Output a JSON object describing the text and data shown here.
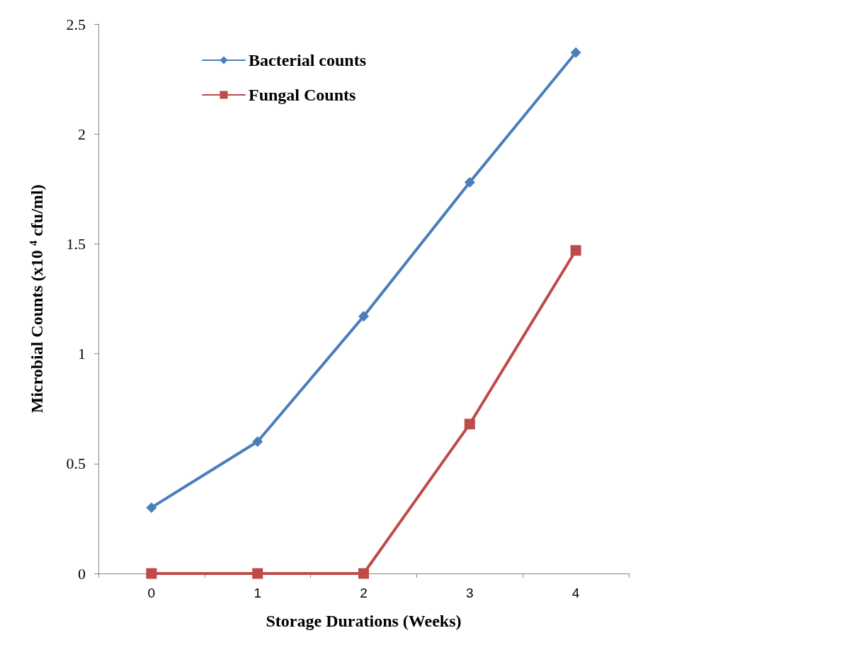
{
  "chart_data": {
    "type": "line",
    "xlabel": "Storage Durations (Weeks)",
    "ylabel": "Microbial Counts (x10 $^{4}$ cfu/ml)",
    "categories": [
      "0",
      "1",
      "2",
      "3",
      "4"
    ],
    "series": [
      {
        "name": "Bacterial counts",
        "color": "#4a7ebb",
        "marker": "diamond",
        "values": [
          0.3,
          0.6,
          1.17,
          1.78,
          2.37
        ]
      },
      {
        "name": "Fungal Counts",
        "color": "#be4b48",
        "marker": "square",
        "values": [
          0,
          0,
          0,
          0.68,
          1.47
        ]
      }
    ],
    "ylim": [
      0,
      2.5
    ],
    "yticks": [
      0,
      0.5,
      1,
      1.5,
      2,
      2.5
    ],
    "grid": false,
    "legend": "top left",
    "line_style": "solid"
  }
}
